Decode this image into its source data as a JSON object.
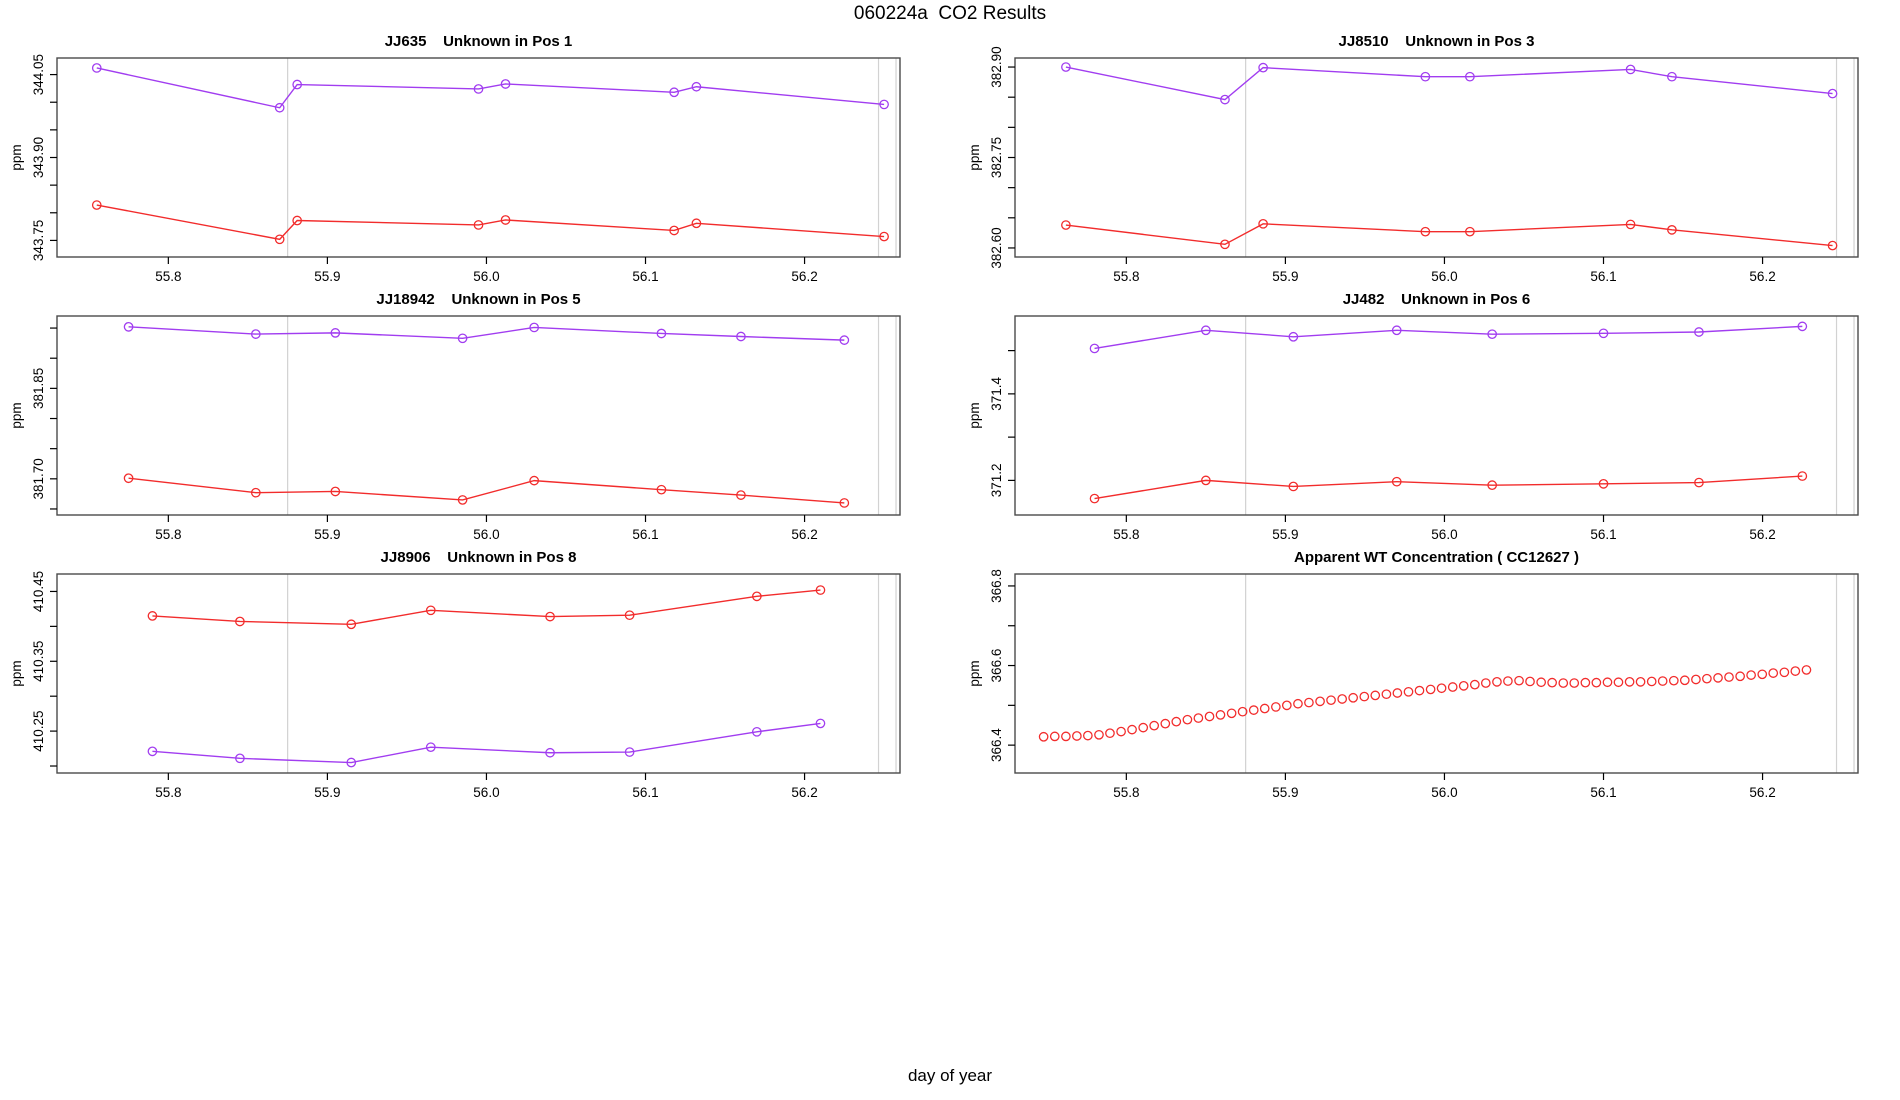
{
  "page_title": "060224a  CO2 Results",
  "xaxis_title": "day of year",
  "colors": {
    "purple_series": "#a13df0",
    "red_series": "#f22c2c",
    "reference_line": "#d2d2d2",
    "frame": "#4a4a4a",
    "text": "#000000",
    "background": "#ffffff"
  },
  "axes": {
    "xlim": [
      55.73,
      56.26
    ],
    "xtick_values": [
      55.8,
      55.9,
      56.0,
      56.1,
      56.2
    ],
    "xtick_labels": [
      "55.8",
      "55.9",
      "56.0",
      "56.1",
      "56.2"
    ],
    "reference_x": [
      55.875,
      56.2465,
      56.2575
    ]
  },
  "chart_data": [
    {
      "type": "line",
      "title": "JJ635    Unknown in Pos 1",
      "ylabel": "ppm",
      "ylim": [
        343.72,
        344.08
      ],
      "ytick_values": [
        343.75,
        343.8,
        343.85,
        343.9,
        343.95,
        344.0,
        344.05
      ],
      "ytick_labels": [
        "343.75",
        "",
        "",
        "343.90",
        "",
        "",
        "344.05"
      ],
      "series": [
        {
          "name": "upper-purple",
          "color_key": "purple_series",
          "x": [
            55.755,
            55.87,
            55.881,
            55.995,
            56.012,
            56.118,
            56.132,
            56.25
          ],
          "y": [
            344.062,
            343.99,
            344.032,
            344.024,
            344.033,
            344.018,
            344.028,
            343.996
          ]
        },
        {
          "name": "lower-red",
          "color_key": "red_series",
          "x": [
            55.755,
            55.87,
            55.881,
            55.995,
            56.012,
            56.118,
            56.132,
            56.25
          ],
          "y": [
            343.814,
            343.752,
            343.786,
            343.778,
            343.787,
            343.768,
            343.781,
            343.757
          ]
        }
      ]
    },
    {
      "type": "line",
      "title": "JJ8510    Unknown in Pos 3",
      "ylabel": "ppm",
      "ylim": [
        382.585,
        382.915
      ],
      "ytick_values": [
        382.6,
        382.65,
        382.7,
        382.75,
        382.8,
        382.85,
        382.9
      ],
      "ytick_labels": [
        "382.60",
        "",
        "",
        "382.75",
        "",
        "",
        "382.90"
      ],
      "series": [
        {
          "name": "upper-purple",
          "color_key": "purple_series",
          "x": [
            55.762,
            55.862,
            55.886,
            55.988,
            56.016,
            56.117,
            56.143,
            56.244
          ],
          "y": [
            382.9,
            382.846,
            382.899,
            382.884,
            382.884,
            382.896,
            382.884,
            382.856
          ]
        },
        {
          "name": "lower-red",
          "color_key": "red_series",
          "x": [
            55.762,
            55.862,
            55.886,
            55.988,
            56.016,
            56.117,
            56.143,
            56.244
          ],
          "y": [
            382.638,
            382.606,
            382.64,
            382.627,
            382.627,
            382.639,
            382.63,
            382.604
          ]
        }
      ]
    },
    {
      "type": "line",
      "title": "JJ18942    Unknown in Pos 5",
      "ylabel": "ppm",
      "ylim": [
        381.64,
        381.97
      ],
      "ytick_values": [
        381.65,
        381.7,
        381.75,
        381.8,
        381.85,
        381.9,
        381.95
      ],
      "ytick_labels": [
        "",
        "381.70",
        "",
        "",
        "381.85",
        "",
        ""
      ],
      "series": [
        {
          "name": "upper-purple",
          "color_key": "purple_series",
          "x": [
            55.775,
            55.855,
            55.905,
            55.985,
            56.03,
            56.11,
            56.16,
            56.225
          ],
          "y": [
            381.952,
            381.94,
            381.942,
            381.933,
            381.951,
            381.941,
            381.936,
            381.93
          ]
        },
        {
          "name": "lower-red",
          "color_key": "red_series",
          "x": [
            55.775,
            55.855,
            55.905,
            55.985,
            56.03,
            56.11,
            56.16,
            56.225
          ],
          "y": [
            381.701,
            381.677,
            381.679,
            381.665,
            381.697,
            381.682,
            381.673,
            381.66
          ]
        }
      ]
    },
    {
      "type": "line",
      "title": "JJ482    Unknown in Pos 6",
      "ylabel": "ppm",
      "ylim": [
        371.12,
        371.58
      ],
      "ytick_values": [
        371.2,
        371.3,
        371.4,
        371.5
      ],
      "ytick_labels": [
        "371.2",
        "",
        "371.4",
        ""
      ],
      "series": [
        {
          "name": "upper-purple",
          "color_key": "purple_series",
          "x": [
            55.78,
            55.85,
            55.905,
            55.97,
            56.03,
            56.1,
            56.16,
            56.225
          ],
          "y": [
            371.505,
            371.547,
            371.532,
            371.547,
            371.538,
            371.54,
            371.543,
            371.556
          ]
        },
        {
          "name": "lower-red",
          "color_key": "red_series",
          "x": [
            55.78,
            55.85,
            55.905,
            55.97,
            56.03,
            56.1,
            56.16,
            56.225
          ],
          "y": [
            371.158,
            371.2,
            371.186,
            371.197,
            371.189,
            371.192,
            371.195,
            371.21
          ]
        }
      ]
    },
    {
      "type": "line",
      "title": "JJ8906    Unknown in Pos 8",
      "ylabel": "ppm",
      "ylim": [
        410.19,
        410.475
      ],
      "ytick_values": [
        410.2,
        410.25,
        410.3,
        410.35,
        410.4,
        410.45
      ],
      "ytick_labels": [
        "",
        "410.25",
        "",
        "410.35",
        "",
        "410.45"
      ],
      "series": [
        {
          "name": "upper-red",
          "color_key": "red_series",
          "x": [
            55.79,
            55.845,
            55.915,
            55.965,
            56.04,
            56.09,
            56.17,
            56.21
          ],
          "y": [
            410.415,
            410.407,
            410.403,
            410.423,
            410.414,
            410.416,
            410.443,
            410.452
          ]
        },
        {
          "name": "lower-purple",
          "color_key": "purple_series",
          "x": [
            55.79,
            55.845,
            55.915,
            55.965,
            56.04,
            56.09,
            56.17,
            56.21
          ],
          "y": [
            410.221,
            410.211,
            410.205,
            410.227,
            410.219,
            410.22,
            410.249,
            410.261
          ]
        }
      ]
    },
    {
      "type": "scatter",
      "title": "Apparent WT Concentration ( CC12627 )",
      "ylabel": "ppm",
      "ylim": [
        366.33,
        366.83
      ],
      "ytick_values": [
        366.4,
        366.5,
        366.6,
        366.7,
        366.8
      ],
      "ytick_labels": [
        "366.4",
        "",
        "366.6",
        "",
        "366.8"
      ],
      "series": [
        {
          "name": "apparent-wt-red",
          "color_key": "red_series",
          "marker_only": true,
          "x": [
            55.748,
            55.755,
            55.762,
            55.7689,
            55.7758,
            55.7828,
            55.7897,
            55.7967,
            55.8036,
            55.8106,
            55.8175,
            55.8245,
            55.8314,
            55.8384,
            55.8453,
            55.8523,
            55.8592,
            55.8662,
            55.8731,
            55.8801,
            55.887,
            55.894,
            55.9009,
            55.9079,
            55.9148,
            55.9218,
            55.9287,
            55.9357,
            55.9426,
            55.9496,
            55.9565,
            55.9635,
            55.9704,
            55.9774,
            55.9843,
            55.9913,
            55.9982,
            56.0052,
            56.0121,
            56.0191,
            56.026,
            56.033,
            56.0399,
            56.0469,
            56.0538,
            56.0608,
            56.0677,
            56.0747,
            56.0816,
            56.0886,
            56.0955,
            56.1025,
            56.1094,
            56.1164,
            56.1233,
            56.1303,
            56.1372,
            56.1442,
            56.1511,
            56.1581,
            56.165,
            56.172,
            56.1789,
            56.1859,
            56.1928,
            56.1998,
            56.2067,
            56.2137,
            56.2206,
            56.2276
          ],
          "y": [
            366.421,
            366.422,
            366.422,
            366.423,
            366.424,
            366.426,
            366.43,
            366.434,
            366.439,
            366.444,
            366.449,
            366.454,
            366.459,
            366.464,
            366.468,
            366.472,
            366.476,
            366.48,
            366.484,
            366.488,
            366.492,
            366.496,
            366.5,
            366.504,
            366.507,
            366.51,
            366.513,
            366.516,
            366.519,
            366.522,
            366.525,
            366.528,
            366.531,
            366.534,
            366.537,
            366.54,
            366.543,
            366.546,
            366.549,
            366.552,
            366.556,
            366.559,
            366.561,
            366.562,
            366.56,
            366.558,
            366.557,
            366.556,
            366.556,
            366.557,
            366.557,
            366.558,
            366.558,
            366.559,
            366.559,
            366.56,
            366.561,
            366.562,
            366.563,
            366.565,
            366.567,
            366.569,
            366.571,
            366.573,
            366.576,
            366.578,
            366.581,
            366.583,
            366.586,
            366.589
          ]
        }
      ]
    }
  ]
}
